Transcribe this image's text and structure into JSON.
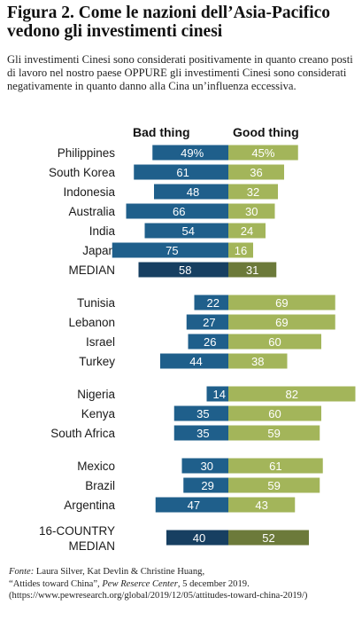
{
  "header": {
    "title": "Figura 2. Come le nazioni dell’Asia-Pacifico vedono gli investimenti cinesi",
    "subtitle": "Gli investimenti Cinesi sono considerati positivamente in quanto creano posti di lavoro nel nostro paese OPPURE gli investimenti Cinesi sono considerati negativamente in quanto danno alla Cina un’influenza eccessiva."
  },
  "chart_data": {
    "type": "bar",
    "subtype": "diverging-horizontal",
    "series": [
      {
        "name": "Bad thing",
        "color": "#1f5f8b",
        "median_color": "#173f61"
      },
      {
        "name": "Good thing",
        "color": "#a3b55a",
        "median_color": "#6c7a3a"
      }
    ],
    "groups": [
      {
        "rows": [
          {
            "label": "Philippines",
            "bad": 49,
            "good": 45,
            "bad_label": "49%",
            "good_label": "45%"
          },
          {
            "label": "South Korea",
            "bad": 61,
            "good": 36,
            "bad_label": "61",
            "good_label": "36"
          },
          {
            "label": "Indonesia",
            "bad": 48,
            "good": 32,
            "bad_label": "48",
            "good_label": "32"
          },
          {
            "label": "Australia",
            "bad": 66,
            "good": 30,
            "bad_label": "66",
            "good_label": "30"
          },
          {
            "label": "India",
            "bad": 54,
            "good": 24,
            "bad_label": "54",
            "good_label": "24"
          },
          {
            "label": "Japan",
            "bad": 75,
            "good": 16,
            "bad_label": "75",
            "good_label": "16"
          },
          {
            "label": "MEDIAN",
            "bad": 58,
            "good": 31,
            "bad_label": "58",
            "good_label": "31",
            "median": true
          }
        ]
      },
      {
        "rows": [
          {
            "label": "Tunisia",
            "bad": 22,
            "good": 69,
            "bad_label": "22",
            "good_label": "69"
          },
          {
            "label": "Lebanon",
            "bad": 27,
            "good": 69,
            "bad_label": "27",
            "good_label": "69"
          },
          {
            "label": "Israel",
            "bad": 26,
            "good": 60,
            "bad_label": "26",
            "good_label": "60"
          },
          {
            "label": "Turkey",
            "bad": 44,
            "good": 38,
            "bad_label": "44",
            "good_label": "38"
          }
        ]
      },
      {
        "rows": [
          {
            "label": "Nigeria",
            "bad": 14,
            "good": 82,
            "bad_label": "14",
            "good_label": "82"
          },
          {
            "label": "Kenya",
            "bad": 35,
            "good": 60,
            "bad_label": "35",
            "good_label": "60"
          },
          {
            "label": "South Africa",
            "bad": 35,
            "good": 59,
            "bad_label": "35",
            "good_label": "59"
          }
        ]
      },
      {
        "rows": [
          {
            "label": "Mexico",
            "bad": 30,
            "good": 61,
            "bad_label": "30",
            "good_label": "61"
          },
          {
            "label": "Brazil",
            "bad": 29,
            "good": 59,
            "bad_label": "29",
            "good_label": "59"
          },
          {
            "label": "Argentina",
            "bad": 47,
            "good": 43,
            "bad_label": "47",
            "good_label": "43"
          }
        ]
      },
      {
        "rows": [
          {
            "label": [
              "16-COUNTRY",
              "MEDIAN"
            ],
            "bad": 40,
            "good": 52,
            "bad_label": "40",
            "good_label": "52",
            "median": true
          }
        ]
      }
    ]
  },
  "source": {
    "label": "Fonte:",
    "authors": " Laura Silver, Kat Devlin & Christine Huang,",
    "line2_pre": "“Attides toward China”, ",
    "line2_pub": "Pew Reserce Center",
    "line2_post": ", 5 december 2019.",
    "line3": "(https://www.pewresearch.org/global/2019/12/05/attitudes-toward-china-2019/)"
  }
}
